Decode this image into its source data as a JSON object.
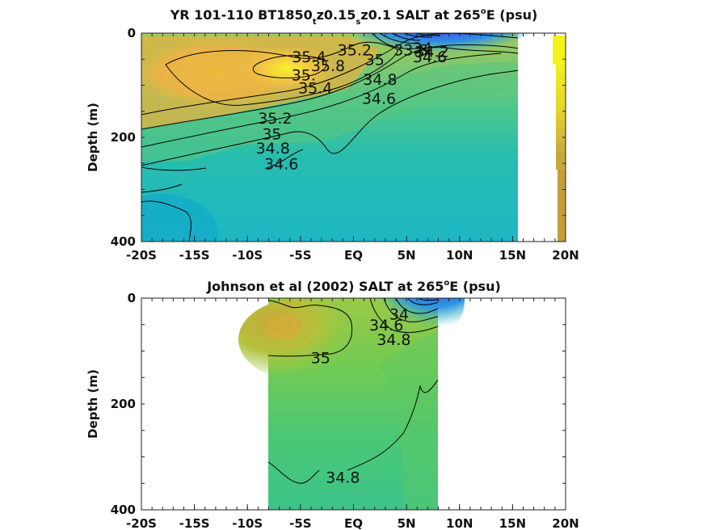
{
  "figure_title": "",
  "chart_data": [
    {
      "type": "heatmap",
      "title_parts": [
        "YR 101-110 BT1850",
        "t",
        "z0.15",
        "s",
        "z0.1 SALT at 265",
        "o",
        "E (psu)"
      ],
      "ylabel": "Depth (m)",
      "xlabel": "",
      "xlim": [
        -20,
        20
      ],
      "ylim": [
        400,
        0
      ],
      "x_ticks": [
        {
          "value": -20,
          "label": "-20S"
        },
        {
          "value": -15,
          "label": "-15S"
        },
        {
          "value": -10,
          "label": "-10S"
        },
        {
          "value": -5,
          "label": "-5S"
        },
        {
          "value": 0,
          "label": "EQ"
        },
        {
          "value": 5,
          "label": "5N"
        },
        {
          "value": 10,
          "label": "10N"
        },
        {
          "value": 15,
          "label": "15N"
        },
        {
          "value": 20,
          "label": "20N"
        }
      ],
      "y_ticks": [
        {
          "value": 0,
          "label": "0"
        },
        {
          "value": 200,
          "label": "200"
        },
        {
          "value": 400,
          "label": "400"
        }
      ],
      "data_extent_lat": [
        -20,
        15.5
      ],
      "contour_levels": [
        33.6,
        34,
        34.2,
        34.4,
        34.6,
        34.8,
        35,
        35.2,
        35.4,
        35.8
      ],
      "contour_labels": [
        {
          "text": "35.4",
          "lat": -4.2,
          "depth": 45
        },
        {
          "text": "35.8",
          "lat": -2.4,
          "depth": 62
        },
        {
          "text": "35.",
          "lat": -4.7,
          "depth": 80
        },
        {
          "text": "35.4",
          "lat": -3.6,
          "depth": 105
        },
        {
          "text": "35.2",
          "lat": 0.1,
          "depth": 32
        },
        {
          "text": "35",
          "lat": 2.0,
          "depth": 50
        },
        {
          "text": "34.8",
          "lat": 2.5,
          "depth": 88
        },
        {
          "text": "34.6",
          "lat": 2.4,
          "depth": 125
        },
        {
          "text": "35.2",
          "lat": -7.4,
          "depth": 163
        },
        {
          "text": "35",
          "lat": -7.7,
          "depth": 193
        },
        {
          "text": "34.8",
          "lat": -7.6,
          "depth": 220
        },
        {
          "text": "34.6",
          "lat": -6.8,
          "depth": 250
        },
        {
          "text": "33.6",
          "lat": 5.4,
          "depth": 32
        },
        {
          "text": "34",
          "lat": 6.5,
          "depth": 28
        },
        {
          "text": "34.2",
          "lat": 7.4,
          "depth": 35
        },
        {
          "text": "34.6",
          "lat": 7.2,
          "depth": 45
        }
      ]
    },
    {
      "type": "heatmap",
      "title_parts": [
        "Johnson et al (2002) SALT at 265",
        "o",
        "E (psu)"
      ],
      "ylabel": "Depth (m)",
      "xlabel": "",
      "xlim": [
        -20,
        20
      ],
      "ylim": [
        400,
        0
      ],
      "x_ticks": [
        {
          "value": -20,
          "label": "-20S"
        },
        {
          "value": -15,
          "label": "-15S"
        },
        {
          "value": -10,
          "label": "-10S"
        },
        {
          "value": -5,
          "label": "-5S"
        },
        {
          "value": 0,
          "label": "EQ"
        },
        {
          "value": 5,
          "label": "5N"
        },
        {
          "value": 10,
          "label": "10N"
        },
        {
          "value": 15,
          "label": "15N"
        },
        {
          "value": 20,
          "label": "20N"
        }
      ],
      "y_ticks": [
        {
          "value": 0,
          "label": "0"
        },
        {
          "value": 200,
          "label": "200"
        },
        {
          "value": 400,
          "label": "400"
        }
      ],
      "data_extent_lat": [
        -8,
        8
      ],
      "contour_levels": [
        34.4,
        34.6,
        34.8,
        35
      ],
      "contour_labels": [
        {
          "text": "35",
          "lat": -3.1,
          "depth": 112
        },
        {
          "text": "34.6",
          "lat": 3.1,
          "depth": 50
        },
        {
          "text": "34",
          "lat": 4.3,
          "depth": 30
        },
        {
          "text": "34.8",
          "lat": 3.8,
          "depth": 78
        },
        {
          "text": "34.8",
          "lat": -1.0,
          "depth": 338
        }
      ]
    }
  ]
}
